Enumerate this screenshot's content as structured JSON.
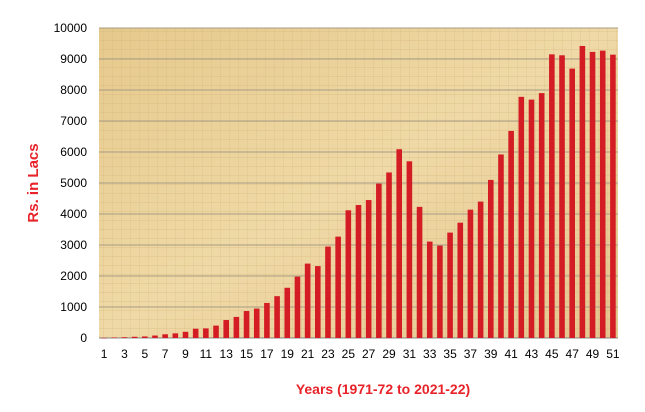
{
  "chart_data": {
    "type": "bar",
    "xlabel": "Years (1971-72 to 2021-22)",
    "ylabel": "Rs. in Lacs",
    "ylim": [
      0,
      10000
    ],
    "yticks": [
      0,
      1000,
      2000,
      3000,
      4000,
      5000,
      6000,
      7000,
      8000,
      9000,
      10000
    ],
    "categories": [
      1,
      2,
      3,
      4,
      5,
      6,
      7,
      8,
      9,
      10,
      11,
      12,
      13,
      14,
      15,
      16,
      17,
      18,
      19,
      20,
      21,
      22,
      23,
      24,
      25,
      26,
      27,
      28,
      29,
      30,
      31,
      32,
      33,
      34,
      35,
      36,
      37,
      38,
      39,
      40,
      41,
      42,
      43,
      44,
      45,
      46,
      47,
      48,
      49,
      50,
      51
    ],
    "xtick_labels": [
      "1",
      "3",
      "5",
      "7",
      "9",
      "11",
      "13",
      "15",
      "17",
      "19",
      "21",
      "23",
      "25",
      "27",
      "29",
      "31",
      "33",
      "35",
      "37",
      "39",
      "41",
      "43",
      "45",
      "47",
      "49",
      "51"
    ],
    "values": [
      5,
      15,
      25,
      40,
      50,
      80,
      120,
      150,
      200,
      300,
      310,
      400,
      580,
      680,
      870,
      950,
      1130,
      1350,
      1620,
      1980,
      2400,
      2320,
      2950,
      3270,
      4120,
      4290,
      4450,
      4980,
      5340,
      6090,
      5700,
      4230,
      3110,
      2980,
      3400,
      3720,
      4140,
      4400,
      5100,
      5920,
      6680,
      7780,
      7690,
      7900,
      9150,
      9120,
      8690,
      9420,
      9230,
      9270,
      9140
    ],
    "bar_color": "#d41c24",
    "plot_background": "#e8cf96",
    "grid": true,
    "legend": "none"
  }
}
